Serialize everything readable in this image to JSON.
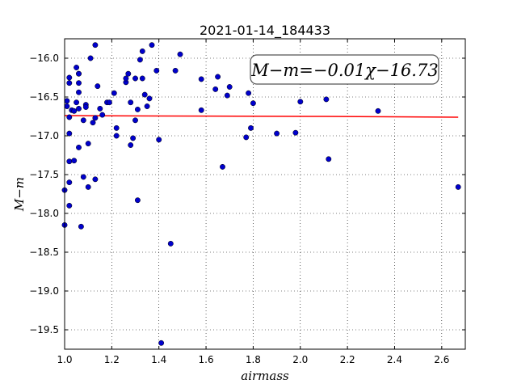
{
  "chart_data": {
    "type": "scatter",
    "title": "2021-01-14_184433",
    "xlabel": "airmass",
    "ylabel": "M−m",
    "xlim": [
      1.0,
      2.7
    ],
    "ylim": [
      -19.75,
      -15.75
    ],
    "y_inverted": true,
    "grid": true,
    "x_ticks": [
      "1.0",
      "1.2",
      "1.4",
      "1.6",
      "1.8",
      "2.0",
      "2.2",
      "2.4",
      "2.6"
    ],
    "y_ticks": [
      "−16.0",
      "−16.5",
      "−17.0",
      "−17.5",
      "−18.0",
      "−18.5",
      "−19.0",
      "−19.5"
    ],
    "annotation": "M−m=−0.01χ−16.73",
    "point_color": "#0000cc",
    "fit_color": "#ff0000",
    "fit_line": {
      "x": [
        1.0,
        1.4,
        2.1,
        2.67
      ],
      "y": [
        -16.74,
        -16.745,
        -16.75,
        -16.76
      ]
    },
    "points": [
      [
        1.0,
        -17.7
      ],
      [
        1.0,
        -18.15
      ],
      [
        1.01,
        -16.55
      ],
      [
        1.01,
        -16.62
      ],
      [
        1.02,
        -16.76
      ],
      [
        1.02,
        -16.32
      ],
      [
        1.02,
        -16.25
      ],
      [
        1.02,
        -17.6
      ],
      [
        1.02,
        -17.9
      ],
      [
        1.02,
        -17.33
      ],
      [
        1.02,
        -16.97
      ],
      [
        1.03,
        -16.67
      ],
      [
        1.04,
        -17.32
      ],
      [
        1.04,
        -16.68
      ],
      [
        1.05,
        -16.57
      ],
      [
        1.05,
        -16.12
      ],
      [
        1.06,
        -16.2
      ],
      [
        1.06,
        -16.2
      ],
      [
        1.06,
        -16.32
      ],
      [
        1.06,
        -16.44
      ],
      [
        1.06,
        -16.65
      ],
      [
        1.06,
        -17.15
      ],
      [
        1.07,
        -18.17
      ],
      [
        1.08,
        -16.8
      ],
      [
        1.08,
        -17.53
      ],
      [
        1.09,
        -16.6
      ],
      [
        1.09,
        -16.63
      ],
      [
        1.1,
        -17.66
      ],
      [
        1.1,
        -17.1
      ],
      [
        1.11,
        -16.0
      ],
      [
        1.12,
        -16.83
      ],
      [
        1.13,
        -17.56
      ],
      [
        1.13,
        -16.77
      ],
      [
        1.13,
        -15.83
      ],
      [
        1.14,
        -16.36
      ],
      [
        1.15,
        -16.65
      ],
      [
        1.16,
        -16.73
      ],
      [
        1.18,
        -16.57
      ],
      [
        1.19,
        -16.57
      ],
      [
        1.21,
        -16.45
      ],
      [
        1.22,
        -17.0
      ],
      [
        1.22,
        -16.9
      ],
      [
        1.26,
        -16.31
      ],
      [
        1.26,
        -16.26
      ],
      [
        1.27,
        -16.2
      ],
      [
        1.28,
        -16.57
      ],
      [
        1.28,
        -17.12
      ],
      [
        1.29,
        -17.03
      ],
      [
        1.3,
        -16.8
      ],
      [
        1.3,
        -16.26
      ],
      [
        1.31,
        -16.66
      ],
      [
        1.31,
        -17.83
      ],
      [
        1.32,
        -16.02
      ],
      [
        1.33,
        -15.91
      ],
      [
        1.33,
        -16.26
      ],
      [
        1.34,
        -16.47
      ],
      [
        1.35,
        -16.62
      ],
      [
        1.36,
        -16.52
      ],
      [
        1.37,
        -15.83
      ],
      [
        1.39,
        -16.16
      ],
      [
        1.4,
        -17.05
      ],
      [
        1.41,
        -19.67
      ],
      [
        1.45,
        -18.39
      ],
      [
        1.47,
        -16.16
      ],
      [
        1.49,
        -15.95
      ],
      [
        1.58,
        -16.27
      ],
      [
        1.58,
        -16.67
      ],
      [
        1.64,
        -16.4
      ],
      [
        1.65,
        -16.24
      ],
      [
        1.67,
        -17.4
      ],
      [
        1.69,
        -16.48
      ],
      [
        1.7,
        -16.37
      ],
      [
        1.77,
        -17.02
      ],
      [
        1.78,
        -16.45
      ],
      [
        1.79,
        -16.9
      ],
      [
        1.8,
        -16.58
      ],
      [
        1.9,
        -16.97
      ],
      [
        1.98,
        -16.96
      ],
      [
        2.0,
        -16.56
      ],
      [
        2.11,
        -16.53
      ],
      [
        2.12,
        -17.3
      ],
      [
        2.33,
        -16.68
      ],
      [
        2.67,
        -17.66
      ]
    ]
  }
}
